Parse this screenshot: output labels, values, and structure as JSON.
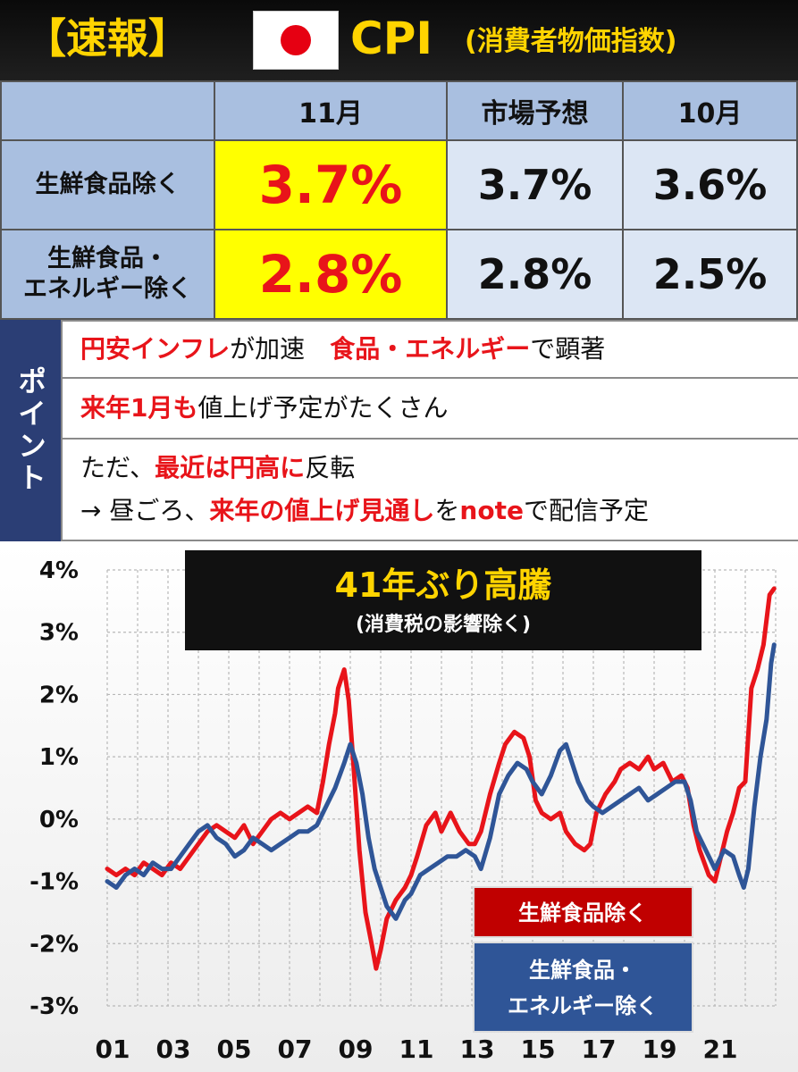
{
  "header": {
    "bracket_label": "【速報】",
    "flag": "japan-flag",
    "title": "CPI",
    "subtitle": "(消費者物価指数)"
  },
  "table": {
    "columns": [
      "11月",
      "市場予想",
      "10月"
    ],
    "rows": [
      {
        "label_lines": [
          "生鮮食品除く"
        ],
        "values": [
          "3.7%",
          "3.7%",
          "3.6%"
        ]
      },
      {
        "label_lines": [
          "生鮮食品・",
          "エネルギー除く"
        ],
        "values": [
          "2.8%",
          "2.8%",
          "2.5%"
        ]
      }
    ]
  },
  "points": {
    "side_label": "ポイント",
    "line1": {
      "a": "円安インフレ",
      "b": "が加速　",
      "c": "食品・エネルギー",
      "d": "で顕著"
    },
    "line2": {
      "a": "来年1月も",
      "b": "値上げ予定がたくさん"
    },
    "line3": {
      "a": "ただ、",
      "b": "最近は円高に",
      "c": "反転"
    },
    "line4": {
      "a": "→ 昼ごろ、",
      "b": "来年の値上げ見通し",
      "c": "を",
      "d": "note",
      "e": "で配信予定"
    }
  },
  "colors": {
    "header_bg": "#111111",
    "header_text": "#ffd400",
    "table_header_bg": "#a9bfe0",
    "highlight_bg": "#ffff00",
    "highlight_text": "#e8141a",
    "cell_bg": "#dce6f4",
    "side_bg": "#2b3e75",
    "series_core": "#e8141a",
    "series_core_core": "#2f5597"
  },
  "chart_data": {
    "type": "line",
    "title": "41年ぶり高騰",
    "subtitle": "(消費税の影響除く)",
    "xlabel": "",
    "ylabel": "",
    "x_ticks": [
      "01",
      "03",
      "05",
      "07",
      "09",
      "11",
      "13",
      "15",
      "17",
      "19",
      "21"
    ],
    "y_ticks": [
      "4%",
      "3%",
      "2%",
      "1%",
      "0%",
      "-1%",
      "-2%",
      "-3%"
    ],
    "ylim": [
      -3,
      4
    ],
    "xlim": [
      2001.0,
      2023.0
    ],
    "grid": "dashed",
    "legend": "bottom-right",
    "series": [
      {
        "name": "生鮮食品除く",
        "points": [
          [
            2001.0,
            -0.8
          ],
          [
            2001.3,
            -0.9
          ],
          [
            2001.6,
            -0.8
          ],
          [
            2001.9,
            -0.9
          ],
          [
            2002.2,
            -0.7
          ],
          [
            2002.5,
            -0.8
          ],
          [
            2002.8,
            -0.9
          ],
          [
            2003.1,
            -0.7
          ],
          [
            2003.4,
            -0.8
          ],
          [
            2003.7,
            -0.6
          ],
          [
            2004.0,
            -0.4
          ],
          [
            2004.3,
            -0.2
          ],
          [
            2004.6,
            -0.1
          ],
          [
            2004.9,
            -0.2
          ],
          [
            2005.2,
            -0.3
          ],
          [
            2005.5,
            -0.1
          ],
          [
            2005.8,
            -0.4
          ],
          [
            2006.1,
            -0.2
          ],
          [
            2006.4,
            0.0
          ],
          [
            2006.7,
            0.1
          ],
          [
            2007.0,
            0.0
          ],
          [
            2007.3,
            0.1
          ],
          [
            2007.6,
            0.2
          ],
          [
            2007.9,
            0.1
          ],
          [
            2008.1,
            0.6
          ],
          [
            2008.3,
            1.2
          ],
          [
            2008.5,
            1.7
          ],
          [
            2008.6,
            2.1
          ],
          [
            2008.8,
            2.4
          ],
          [
            2008.95,
            1.9
          ],
          [
            2009.1,
            0.9
          ],
          [
            2009.3,
            -0.5
          ],
          [
            2009.5,
            -1.5
          ],
          [
            2009.7,
            -2.0
          ],
          [
            2009.85,
            -2.4
          ],
          [
            2010.0,
            -2.1
          ],
          [
            2010.2,
            -1.6
          ],
          [
            2010.5,
            -1.3
          ],
          [
            2010.8,
            -1.1
          ],
          [
            2011.0,
            -0.9
          ],
          [
            2011.2,
            -0.6
          ],
          [
            2011.5,
            -0.1
          ],
          [
            2011.8,
            0.1
          ],
          [
            2012.0,
            -0.2
          ],
          [
            2012.3,
            0.1
          ],
          [
            2012.6,
            -0.2
          ],
          [
            2012.9,
            -0.4
          ],
          [
            2013.1,
            -0.4
          ],
          [
            2013.3,
            -0.2
          ],
          [
            2013.6,
            0.4
          ],
          [
            2013.9,
            0.9
          ],
          [
            2014.1,
            1.2
          ],
          [
            2014.4,
            1.4
          ],
          [
            2014.7,
            1.3
          ],
          [
            2014.9,
            1.0
          ],
          [
            2015.1,
            0.3
          ],
          [
            2015.3,
            0.1
          ],
          [
            2015.6,
            0.0
          ],
          [
            2015.9,
            0.1
          ],
          [
            2016.1,
            -0.2
          ],
          [
            2016.4,
            -0.4
          ],
          [
            2016.7,
            -0.5
          ],
          [
            2016.9,
            -0.4
          ],
          [
            2017.1,
            0.1
          ],
          [
            2017.4,
            0.4
          ],
          [
            2017.7,
            0.6
          ],
          [
            2017.9,
            0.8
          ],
          [
            2018.2,
            0.9
          ],
          [
            2018.5,
            0.8
          ],
          [
            2018.8,
            1.0
          ],
          [
            2019.0,
            0.8
          ],
          [
            2019.3,
            0.9
          ],
          [
            2019.6,
            0.6
          ],
          [
            2019.9,
            0.7
          ],
          [
            2020.1,
            0.5
          ],
          [
            2020.3,
            -0.1
          ],
          [
            2020.5,
            -0.5
          ],
          [
            2020.8,
            -0.9
          ],
          [
            2021.0,
            -1.0
          ],
          [
            2021.2,
            -0.6
          ],
          [
            2021.4,
            -0.2
          ],
          [
            2021.6,
            0.1
          ],
          [
            2021.8,
            0.5
          ],
          [
            2022.0,
            0.6
          ],
          [
            2022.2,
            2.1
          ],
          [
            2022.4,
            2.4
          ],
          [
            2022.6,
            2.8
          ],
          [
            2022.8,
            3.6
          ],
          [
            2022.95,
            3.7
          ]
        ]
      },
      {
        "name": "生鮮食品・エネルギー除く",
        "points": [
          [
            2001.0,
            -1.0
          ],
          [
            2001.3,
            -1.1
          ],
          [
            2001.6,
            -0.9
          ],
          [
            2001.9,
            -0.8
          ],
          [
            2002.2,
            -0.9
          ],
          [
            2002.5,
            -0.7
          ],
          [
            2002.8,
            -0.8
          ],
          [
            2003.1,
            -0.8
          ],
          [
            2003.4,
            -0.6
          ],
          [
            2003.7,
            -0.4
          ],
          [
            2004.0,
            -0.2
          ],
          [
            2004.3,
            -0.1
          ],
          [
            2004.6,
            -0.3
          ],
          [
            2004.9,
            -0.4
          ],
          [
            2005.2,
            -0.6
          ],
          [
            2005.5,
            -0.5
          ],
          [
            2005.8,
            -0.3
          ],
          [
            2006.1,
            -0.4
          ],
          [
            2006.4,
            -0.5
          ],
          [
            2006.7,
            -0.4
          ],
          [
            2007.0,
            -0.3
          ],
          [
            2007.3,
            -0.2
          ],
          [
            2007.6,
            -0.2
          ],
          [
            2007.9,
            -0.1
          ],
          [
            2008.2,
            0.2
          ],
          [
            2008.5,
            0.5
          ],
          [
            2008.8,
            0.9
          ],
          [
            2009.0,
            1.2
          ],
          [
            2009.2,
            0.9
          ],
          [
            2009.4,
            0.4
          ],
          [
            2009.6,
            -0.3
          ],
          [
            2009.8,
            -0.8
          ],
          [
            2010.0,
            -1.1
          ],
          [
            2010.2,
            -1.4
          ],
          [
            2010.5,
            -1.6
          ],
          [
            2010.8,
            -1.3
          ],
          [
            2011.0,
            -1.2
          ],
          [
            2011.3,
            -0.9
          ],
          [
            2011.6,
            -0.8
          ],
          [
            2011.9,
            -0.7
          ],
          [
            2012.2,
            -0.6
          ],
          [
            2012.5,
            -0.6
          ],
          [
            2012.8,
            -0.5
          ],
          [
            2013.1,
            -0.6
          ],
          [
            2013.3,
            -0.8
          ],
          [
            2013.6,
            -0.3
          ],
          [
            2013.9,
            0.4
          ],
          [
            2014.2,
            0.7
          ],
          [
            2014.5,
            0.9
          ],
          [
            2014.8,
            0.8
          ],
          [
            2015.0,
            0.6
          ],
          [
            2015.3,
            0.4
          ],
          [
            2015.6,
            0.7
          ],
          [
            2015.9,
            1.1
          ],
          [
            2016.1,
            1.2
          ],
          [
            2016.3,
            0.9
          ],
          [
            2016.5,
            0.6
          ],
          [
            2016.8,
            0.3
          ],
          [
            2017.0,
            0.2
          ],
          [
            2017.3,
            0.1
          ],
          [
            2017.6,
            0.2
          ],
          [
            2017.9,
            0.3
          ],
          [
            2018.2,
            0.4
          ],
          [
            2018.5,
            0.5
          ],
          [
            2018.8,
            0.3
          ],
          [
            2019.1,
            0.4
          ],
          [
            2019.4,
            0.5
          ],
          [
            2019.7,
            0.6
          ],
          [
            2020.0,
            0.6
          ],
          [
            2020.2,
            0.3
          ],
          [
            2020.4,
            -0.2
          ],
          [
            2020.7,
            -0.5
          ],
          [
            2021.0,
            -0.8
          ],
          [
            2021.3,
            -0.5
          ],
          [
            2021.6,
            -0.6
          ],
          [
            2021.8,
            -0.9
          ],
          [
            2021.95,
            -1.1
          ],
          [
            2022.1,
            -0.8
          ],
          [
            2022.3,
            0.2
          ],
          [
            2022.5,
            1.0
          ],
          [
            2022.7,
            1.6
          ],
          [
            2022.85,
            2.5
          ],
          [
            2022.95,
            2.8
          ]
        ]
      }
    ]
  }
}
